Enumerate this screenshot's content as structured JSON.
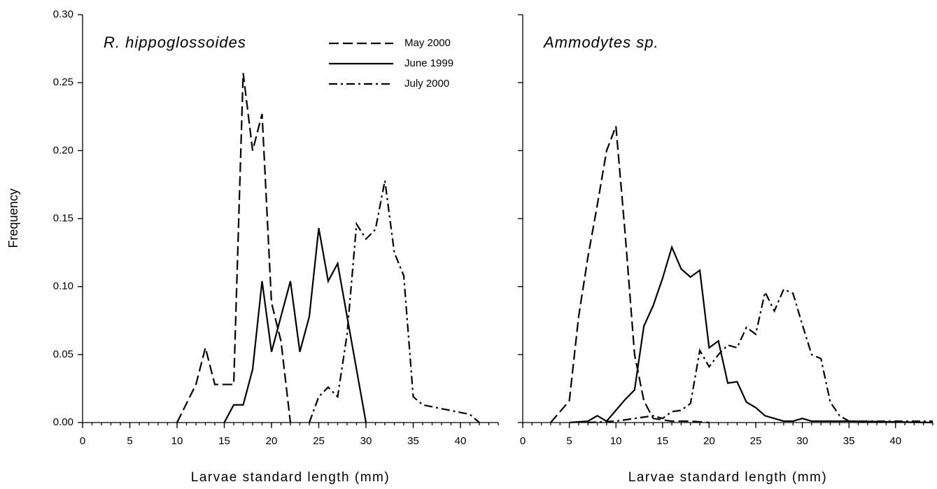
{
  "chart_data": [
    {
      "type": "line",
      "title": "R. hippoglossoides",
      "xlabel": "Larvae standard length (mm)",
      "ylabel": "Frequency",
      "xlim": [
        0,
        44
      ],
      "ylim": [
        0,
        0.3
      ],
      "xticks": [
        0,
        5,
        10,
        15,
        20,
        25,
        30,
        35,
        40
      ],
      "xminor": 1,
      "yticks": [
        {
          "value": 0,
          "label": "0.00"
        },
        {
          "value": 0.05,
          "label": "0.05"
        },
        {
          "value": 0.1,
          "label": "0.10"
        },
        {
          "value": 0.15,
          "label": "0.15"
        },
        {
          "value": 0.2,
          "label": "0.20"
        },
        {
          "value": 0.25,
          "label": "0.25"
        },
        {
          "value": 0.3,
          "label": "0.30"
        }
      ],
      "show_ytick_labels": true,
      "legend": "upper right",
      "series": [
        {
          "name": "May 2000",
          "color": "#000000",
          "dash": "dashed",
          "x": [
            10,
            12,
            13,
            14,
            15,
            16,
            17,
            18,
            19,
            20,
            21,
            22
          ],
          "values": [
            0,
            0.028,
            0.055,
            0.028,
            0.028,
            0.028,
            0.257,
            0.2,
            0.227,
            0.088,
            0.06,
            0
          ]
        },
        {
          "name": "June 1999",
          "color": "#000000",
          "dash": "solid",
          "x": [
            15,
            16,
            17,
            18,
            19,
            20,
            21,
            22,
            23,
            24,
            25,
            26,
            27,
            30
          ],
          "values": [
            0,
            0.013,
            0.013,
            0.039,
            0.104,
            0.052,
            0.078,
            0.104,
            0.052,
            0.078,
            0.143,
            0.104,
            0.117,
            0
          ]
        },
        {
          "name": "July 2000",
          "color": "#000000",
          "dash": "dashdot",
          "x": [
            24,
            25,
            26,
            27,
            28,
            29,
            30,
            31,
            32,
            33,
            34,
            35,
            36,
            41,
            42
          ],
          "values": [
            0,
            0.019,
            0.026,
            0.019,
            0.065,
            0.146,
            0.135,
            0.142,
            0.178,
            0.125,
            0.108,
            0.019,
            0.013,
            0.006,
            0
          ]
        }
      ]
    },
    {
      "type": "line",
      "title": "Ammodytes sp.",
      "xlabel": "Larvae standard length (mm)",
      "xlim": [
        0,
        44
      ],
      "ylim": [
        0,
        0.3
      ],
      "xticks": [
        0,
        5,
        10,
        15,
        20,
        25,
        30,
        35,
        40
      ],
      "xminor": 1,
      "yticks": [
        0,
        0.05,
        0.1,
        0.15,
        0.2,
        0.25,
        0.3
      ],
      "show_ytick_labels": false,
      "series": [
        {
          "color": "#000000",
          "dash": "dashed",
          "x": [
            3,
            5,
            6,
            7,
            8,
            9,
            10,
            11,
            12,
            13,
            14,
            16,
            18,
            20
          ],
          "values": [
            0,
            0.016,
            0.078,
            0.122,
            0.16,
            0.2,
            0.218,
            0.138,
            0.05,
            0.016,
            0.003,
            0.001,
            0.001,
            0
          ]
        },
        {
          "color": "#000000",
          "dash": "solid",
          "x": [
            5,
            7,
            8,
            9,
            10,
            11,
            12,
            13,
            14,
            15,
            16,
            17,
            18,
            19,
            20,
            21,
            22,
            23,
            24,
            25,
            26,
            27,
            28,
            29,
            30,
            31,
            35,
            44
          ],
          "values": [
            0,
            0.001,
            0.005,
            0.001,
            0.009,
            0.017,
            0.024,
            0.071,
            0.086,
            0.106,
            0.129,
            0.113,
            0.107,
            0.112,
            0.055,
            0.06,
            0.029,
            0.03,
            0.015,
            0.011,
            0.005,
            0.003,
            0.001,
            0.001,
            0.003,
            0.001,
            0.001,
            0
          ]
        },
        {
          "color": "#000000",
          "dash": "dashdot",
          "x": [
            7,
            10,
            12,
            14,
            15,
            16,
            17,
            18,
            19,
            20,
            21,
            22,
            23,
            24,
            25,
            26,
            27,
            28,
            29,
            30,
            31,
            32,
            33,
            34,
            35,
            40,
            44
          ],
          "values": [
            0,
            0.001,
            0.003,
            0.005,
            0.003,
            0.008,
            0.009,
            0.014,
            0.053,
            0.041,
            0.05,
            0.057,
            0.055,
            0.07,
            0.065,
            0.096,
            0.082,
            0.098,
            0.095,
            0.072,
            0.05,
            0.047,
            0.015,
            0.005,
            0.001,
            0.001,
            0.001
          ]
        }
      ]
    }
  ]
}
